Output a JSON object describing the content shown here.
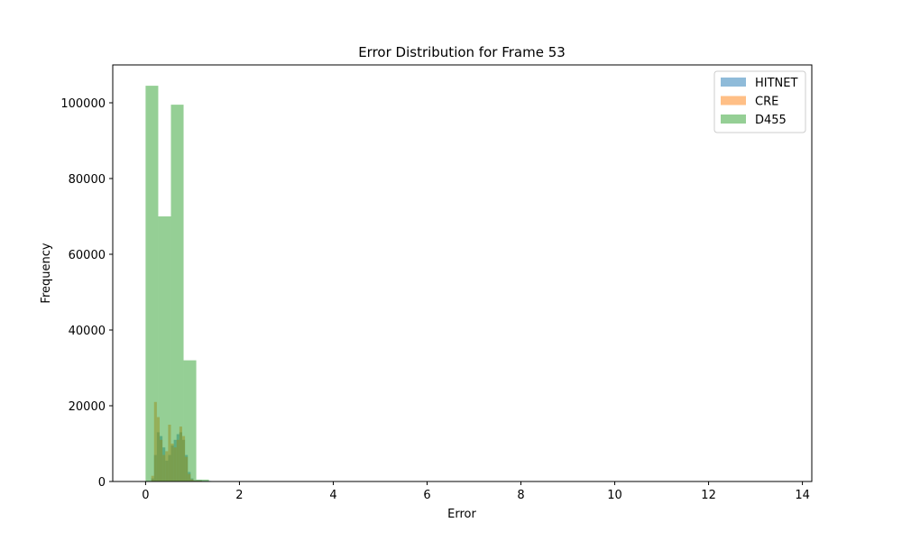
{
  "chart_data": {
    "type": "bar",
    "title": "Error Distribution for Frame 53",
    "xlabel": "Error",
    "ylabel": "Frequency",
    "xlim": [
      -0.7,
      14.2
    ],
    "ylim": [
      0,
      110000
    ],
    "x_ticks": [
      0,
      2,
      4,
      6,
      8,
      10,
      12,
      14
    ],
    "y_ticks": [
      0,
      20000,
      40000,
      60000,
      80000,
      100000
    ],
    "legend_position": "top-right",
    "grid": false,
    "colors": {
      "HITNET": "#1f77b4",
      "CRE": "#ff7f0e",
      "D455": "#2ca02c"
    },
    "bar_opacity": 0.5,
    "series": [
      {
        "name": "HITNET",
        "bins": [
          [
            0.0,
            0.06,
            0
          ],
          [
            0.06,
            0.12,
            0
          ],
          [
            0.12,
            0.18,
            800
          ],
          [
            0.18,
            0.24,
            7000
          ],
          [
            0.24,
            0.3,
            13000
          ],
          [
            0.3,
            0.36,
            12000
          ],
          [
            0.36,
            0.42,
            9000
          ],
          [
            0.42,
            0.48,
            5500
          ],
          [
            0.48,
            0.54,
            7000
          ],
          [
            0.54,
            0.6,
            9500
          ],
          [
            0.6,
            0.66,
            11000
          ],
          [
            0.66,
            0.72,
            12500
          ],
          [
            0.72,
            0.78,
            13000
          ],
          [
            0.78,
            0.84,
            11000
          ],
          [
            0.84,
            0.9,
            7000
          ],
          [
            0.9,
            0.96,
            2500
          ],
          [
            0.96,
            1.02,
            800
          ],
          [
            1.02,
            1.2,
            300
          ],
          [
            1.2,
            1.4,
            150
          ],
          [
            1.4,
            2.0,
            60
          ],
          [
            2.0,
            3.0,
            20
          ]
        ]
      },
      {
        "name": "CRE",
        "bins": [
          [
            0.0,
            0.06,
            0
          ],
          [
            0.06,
            0.12,
            0
          ],
          [
            0.12,
            0.18,
            1500
          ],
          [
            0.18,
            0.24,
            21000
          ],
          [
            0.24,
            0.3,
            17000
          ],
          [
            0.3,
            0.36,
            11000
          ],
          [
            0.36,
            0.42,
            7000
          ],
          [
            0.42,
            0.48,
            8000
          ],
          [
            0.48,
            0.54,
            15000
          ],
          [
            0.54,
            0.6,
            10000
          ],
          [
            0.6,
            0.66,
            9000
          ],
          [
            0.66,
            0.72,
            11000
          ],
          [
            0.72,
            0.78,
            14500
          ],
          [
            0.78,
            0.84,
            12000
          ],
          [
            0.84,
            0.9,
            6500
          ],
          [
            0.9,
            0.96,
            2000
          ],
          [
            0.96,
            1.02,
            600
          ],
          [
            1.02,
            1.2,
            250
          ],
          [
            1.2,
            1.4,
            120
          ],
          [
            1.4,
            2.0,
            50
          ],
          [
            2.0,
            3.0,
            15
          ]
        ]
      },
      {
        "name": "D455",
        "bins": [
          [
            0.0,
            0.27,
            104500
          ],
          [
            0.27,
            0.54,
            70000
          ],
          [
            0.54,
            0.81,
            99500
          ],
          [
            0.81,
            1.08,
            32000
          ],
          [
            1.08,
            1.35,
            500
          ],
          [
            1.35,
            1.62,
            100
          ],
          [
            1.62,
            1.89,
            30
          ]
        ]
      }
    ]
  }
}
